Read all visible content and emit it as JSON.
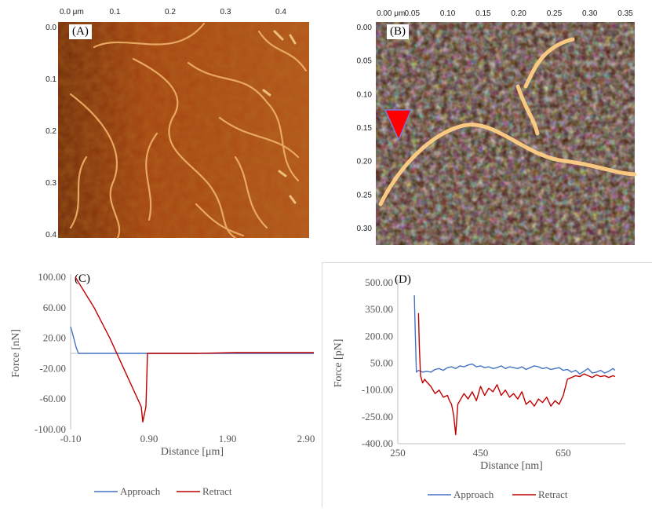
{
  "images": {
    "a": {
      "label": "(A)",
      "x_ticks": [
        "0.0 μm",
        "0.1",
        "0.2",
        "0.3",
        "0.4"
      ],
      "y_ticks": [
        "0.0",
        "0.1",
        "0.2",
        "0.3",
        "0.4"
      ]
    },
    "b": {
      "label": "(B)",
      "x_ticks": [
        "0.00 μm",
        "0.05",
        "0.10",
        "0.15",
        "0.20",
        "0.25",
        "0.30",
        "0.35"
      ],
      "y_ticks": [
        "0.00",
        "0.05",
        "0.10",
        "0.15",
        "0.20",
        "0.25",
        "0.30"
      ]
    }
  },
  "chart_data": [
    {
      "label": "(C)",
      "type": "line",
      "xlabel": "Distance [μm]",
      "ylabel": "Force [nN]",
      "xlim": [
        -0.1,
        3.0
      ],
      "ylim": [
        -100,
        100
      ],
      "x_ticks": [
        "-0.10",
        "0.90",
        "1.90",
        "2.90"
      ],
      "y_ticks": [
        "100.00",
        "60.00",
        "20.00",
        "-20.00",
        "-60.00",
        "-100.00"
      ],
      "colors": [
        "#4472c4",
        "#c00000"
      ],
      "series": [
        {
          "name": "Approach",
          "x": [
            -0.1,
            -0.06,
            -0.03,
            0.0,
            0.2,
            0.9,
            1.5,
            2.0,
            2.5,
            3.0
          ],
          "y": [
            35,
            20,
            8,
            0,
            0,
            0,
            0,
            0,
            0,
            0
          ]
        },
        {
          "name": "Retract",
          "x": [
            -0.04,
            0.05,
            0.2,
            0.4,
            0.6,
            0.8,
            0.82,
            0.86,
            0.88,
            1.0,
            1.5,
            2.0,
            2.5,
            3.0
          ],
          "y": [
            100,
            85,
            60,
            20,
            -25,
            -70,
            -90,
            -70,
            0,
            0,
            0,
            1,
            1,
            1
          ]
        }
      ]
    },
    {
      "label": "(D)",
      "type": "line",
      "xlabel": "Distance [nm]",
      "ylabel": "Force [pN]",
      "xlim": [
        250,
        800
      ],
      "ylim": [
        -400,
        500
      ],
      "x_ticks": [
        "250",
        "450",
        "650"
      ],
      "y_ticks": [
        "500.00",
        "350.00",
        "200.00",
        "50.00",
        "-100.00",
        "-250.00",
        "-400.00"
      ],
      "colors": [
        "#4472c4",
        "#c00000"
      ],
      "series": [
        {
          "name": "Approach",
          "x": [
            290,
            292,
            295,
            300,
            310,
            320,
            330,
            340,
            350,
            360,
            370,
            380,
            390,
            400,
            410,
            420,
            430,
            440,
            450,
            460,
            470,
            480,
            490,
            500,
            510,
            520,
            530,
            540,
            550,
            560,
            570,
            580,
            590,
            600,
            610,
            620,
            630,
            640,
            650,
            660,
            670,
            680,
            690,
            700,
            710,
            720,
            730,
            740,
            750,
            760,
            770,
            775
          ],
          "y": [
            430,
            250,
            0,
            10,
            0,
            5,
            0,
            15,
            20,
            10,
            25,
            30,
            20,
            35,
            30,
            40,
            45,
            30,
            35,
            25,
            30,
            20,
            25,
            35,
            20,
            30,
            25,
            20,
            30,
            15,
            25,
            35,
            30,
            20,
            25,
            15,
            20,
            25,
            10,
            15,
            0,
            10,
            -10,
            5,
            20,
            -5,
            0,
            10,
            -5,
            5,
            20,
            10
          ]
        },
        {
          "name": "Retract",
          "x": [
            300,
            302,
            305,
            310,
            315,
            320,
            330,
            340,
            350,
            360,
            370,
            375,
            380,
            385,
            390,
            395,
            400,
            410,
            420,
            430,
            440,
            450,
            460,
            470,
            480,
            490,
            500,
            510,
            520,
            530,
            540,
            550,
            560,
            570,
            580,
            590,
            600,
            610,
            620,
            630,
            640,
            650,
            660,
            670,
            680,
            690,
            700,
            710,
            720,
            730,
            740,
            750,
            760,
            770,
            775
          ],
          "y": [
            330,
            150,
            -20,
            -60,
            -40,
            -55,
            -80,
            -120,
            -100,
            -140,
            -130,
            -160,
            -180,
            -240,
            -350,
            -180,
            -160,
            -120,
            -150,
            -110,
            -160,
            -80,
            -130,
            -90,
            -110,
            -70,
            -130,
            -100,
            -140,
            -120,
            -150,
            -110,
            -180,
            -160,
            -190,
            -150,
            -170,
            -140,
            -190,
            -160,
            -180,
            -130,
            -40,
            -30,
            -20,
            -25,
            -10,
            -20,
            -30,
            -15,
            -25,
            -20,
            -30,
            -20,
            -25
          ]
        }
      ]
    }
  ]
}
